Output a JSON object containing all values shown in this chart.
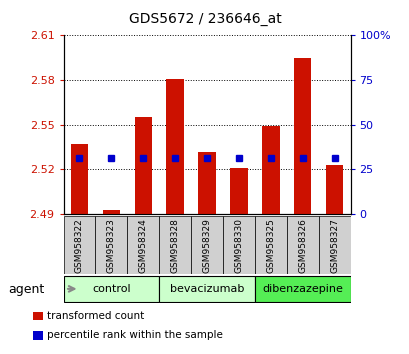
{
  "title": "GDS5672 / 236646_at",
  "samples": [
    "GSM958322",
    "GSM958323",
    "GSM958324",
    "GSM958328",
    "GSM958329",
    "GSM958330",
    "GSM958325",
    "GSM958326",
    "GSM958327"
  ],
  "transformed_counts": [
    2.537,
    2.493,
    2.555,
    2.581,
    2.532,
    2.521,
    2.549,
    2.595,
    2.523
  ],
  "percentile_values": [
    2.528,
    2.528,
    2.528,
    2.528,
    2.528,
    2.528,
    2.528,
    2.528,
    2.528
  ],
  "groups": [
    {
      "label": "control",
      "start": 0,
      "end": 3,
      "color": "#ccffcc"
    },
    {
      "label": "bevacizumab",
      "start": 3,
      "end": 6,
      "color": "#ccffcc"
    },
    {
      "label": "dibenzazepine",
      "start": 6,
      "end": 9,
      "color": "#55ee55"
    }
  ],
  "bar_color": "#cc1100",
  "percentile_color": "#0000cc",
  "ymin": 2.49,
  "ymax": 2.61,
  "yticks": [
    2.49,
    2.52,
    2.55,
    2.58,
    2.61
  ],
  "ytick_labels": [
    "2.49",
    "2.52",
    "2.55",
    "2.58",
    "2.61"
  ],
  "right_yticks": [
    0,
    25,
    50,
    75,
    100
  ],
  "right_ytick_labels": [
    "0",
    "25",
    "50",
    "75",
    "100%"
  ],
  "bar_width": 0.55,
  "agent_label": "agent",
  "legend_items": [
    {
      "color": "#cc1100",
      "label": "transformed count"
    },
    {
      "color": "#0000cc",
      "label": "percentile rank within the sample"
    }
  ]
}
